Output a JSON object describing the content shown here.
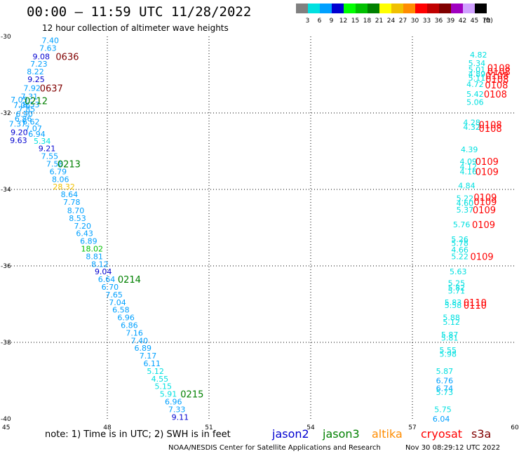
{
  "title": "00:00 – 11:59 UTC 11/28/2022",
  "subtitle": "12 hour collection of altimeter wave heights",
  "scale": {
    "unit": "(ft)",
    "entries": [
      {
        "label": "3",
        "color": "#808080"
      },
      {
        "label": "6",
        "color": "#00e0e0"
      },
      {
        "label": "9",
        "color": "#00a0ff"
      },
      {
        "label": "12",
        "color": "#0000d0"
      },
      {
        "label": "15",
        "color": "#00ff00"
      },
      {
        "label": "18",
        "color": "#00c000"
      },
      {
        "label": "21",
        "color": "#008000"
      },
      {
        "label": "24",
        "color": "#ffff00"
      },
      {
        "label": "27",
        "color": "#f0c000"
      },
      {
        "label": "30",
        "color": "#ff8c00"
      },
      {
        "label": "33",
        "color": "#ff0000"
      },
      {
        "label": "36",
        "color": "#c00000"
      },
      {
        "label": "39",
        "color": "#800000"
      },
      {
        "label": "42",
        "color": "#a000c0"
      },
      {
        "label": "45",
        "color": "#d0a0ff"
      },
      {
        "label": "70",
        "color": "#000000"
      }
    ]
  },
  "map": {
    "lon_range": [
      45,
      60
    ],
    "lat_range": [
      -40,
      -30
    ],
    "lon_ticks": [
      "45",
      "48",
      "51",
      "54",
      "57",
      "60"
    ],
    "lat_ticks": [
      "-30",
      "-32",
      "-34",
      "-36",
      "-38",
      "-40"
    ],
    "gridline_lons": [
      48,
      51,
      54,
      57
    ],
    "gridline_lats": [
      -32,
      -34,
      -36,
      -38
    ]
  },
  "observations": [
    {
      "v": "7.40",
      "lon": 46.32,
      "lat": -30.1,
      "c": "#00a0ff"
    },
    {
      "v": "7.63",
      "lon": 46.25,
      "lat": -30.3,
      "c": "#00a0ff"
    },
    {
      "v": "9.08",
      "lon": 46.05,
      "lat": -30.52,
      "c": "#0000d0"
    },
    {
      "v": "7.23",
      "lon": 45.98,
      "lat": -30.72,
      "c": "#00a0ff"
    },
    {
      "v": "8.22",
      "lon": 45.88,
      "lat": -30.92,
      "c": "#00a0ff"
    },
    {
      "v": "9.25",
      "lon": 45.9,
      "lat": -31.12,
      "c": "#0000d0"
    },
    {
      "v": "7.92",
      "lon": 45.78,
      "lat": -31.35,
      "c": "#00a0ff"
    },
    {
      "v": "7.31",
      "lon": 45.7,
      "lat": -31.57,
      "c": "#00a0ff"
    },
    {
      "v": "7.05",
      "lon": 45.4,
      "lat": -31.65,
      "c": "#00a0ff"
    },
    {
      "v": "7.06",
      "lon": 45.48,
      "lat": -31.8,
      "c": "#00a0ff"
    },
    {
      "v": "8.53",
      "lon": 45.75,
      "lat": -31.78,
      "c": "#00a0ff"
    },
    {
      "v": "7.85",
      "lon": 45.62,
      "lat": -31.9,
      "c": "#00a0ff"
    },
    {
      "v": "6.90",
      "lon": 45.55,
      "lat": -32.03,
      "c": "#00a0ff"
    },
    {
      "v": "6.86",
      "lon": 45.52,
      "lat": -32.15,
      "c": "#00a0ff"
    },
    {
      "v": "6.62",
      "lon": 45.75,
      "lat": -32.23,
      "c": "#00a0ff"
    },
    {
      "v": "7.37",
      "lon": 45.35,
      "lat": -32.28,
      "c": "#00a0ff"
    },
    {
      "v": "7.07",
      "lon": 45.82,
      "lat": -32.4,
      "c": "#00a0ff"
    },
    {
      "v": "9.20",
      "lon": 45.4,
      "lat": -32.5,
      "c": "#0000d0"
    },
    {
      "v": "6.94",
      "lon": 45.92,
      "lat": -32.55,
      "c": "#00a0ff"
    },
    {
      "v": "9.63",
      "lon": 45.38,
      "lat": -32.72,
      "c": "#0000d0"
    },
    {
      "v": "5.34",
      "lon": 46.08,
      "lat": -32.73,
      "c": "#00e0e0"
    },
    {
      "v": "9.21",
      "lon": 46.22,
      "lat": -32.93,
      "c": "#0000d0"
    },
    {
      "v": "7.55",
      "lon": 46.3,
      "lat": -33.13,
      "c": "#00a0ff"
    },
    {
      "v": "7.58",
      "lon": 46.45,
      "lat": -33.33,
      "c": "#00a0ff"
    },
    {
      "v": "6.79",
      "lon": 46.55,
      "lat": -33.53,
      "c": "#00a0ff"
    },
    {
      "v": "8.06",
      "lon": 46.62,
      "lat": -33.73,
      "c": "#00a0ff"
    },
    {
      "v": "28.32",
      "lon": 46.72,
      "lat": -33.93,
      "c": "#f0c000"
    },
    {
      "v": "8.64",
      "lon": 46.88,
      "lat": -34.13,
      "c": "#00a0ff"
    },
    {
      "v": "7.78",
      "lon": 46.95,
      "lat": -34.33,
      "c": "#00a0ff"
    },
    {
      "v": "8.70",
      "lon": 47.07,
      "lat": -34.55,
      "c": "#00a0ff"
    },
    {
      "v": "8.53",
      "lon": 47.12,
      "lat": -34.75,
      "c": "#00a0ff"
    },
    {
      "v": "7.20",
      "lon": 47.27,
      "lat": -34.95,
      "c": "#00a0ff"
    },
    {
      "v": "6.43",
      "lon": 47.33,
      "lat": -35.15,
      "c": "#00a0ff"
    },
    {
      "v": "6.89",
      "lon": 47.45,
      "lat": -35.35,
      "c": "#00a0ff"
    },
    {
      "v": "18.02",
      "lon": 47.55,
      "lat": -35.55,
      "c": "#00c000"
    },
    {
      "v": "8.81",
      "lon": 47.62,
      "lat": -35.75,
      "c": "#00a0ff"
    },
    {
      "v": "8.12",
      "lon": 47.78,
      "lat": -35.95,
      "c": "#00a0ff"
    },
    {
      "v": "9.04",
      "lon": 47.88,
      "lat": -36.15,
      "c": "#0000d0"
    },
    {
      "v": "6.64",
      "lon": 47.98,
      "lat": -36.35,
      "c": "#00a0ff"
    },
    {
      "v": "6.70",
      "lon": 48.08,
      "lat": -36.55,
      "c": "#00a0ff"
    },
    {
      "v": "7.65",
      "lon": 48.2,
      "lat": -36.75,
      "c": "#00a0ff"
    },
    {
      "v": "7.04",
      "lon": 48.3,
      "lat": -36.95,
      "c": "#00a0ff"
    },
    {
      "v": "6.58",
      "lon": 48.4,
      "lat": -37.15,
      "c": "#00a0ff"
    },
    {
      "v": "6.96",
      "lon": 48.55,
      "lat": -37.35,
      "c": "#00a0ff"
    },
    {
      "v": "6.86",
      "lon": 48.65,
      "lat": -37.55,
      "c": "#00a0ff"
    },
    {
      "v": "7.16",
      "lon": 48.8,
      "lat": -37.75,
      "c": "#00a0ff"
    },
    {
      "v": "7.40",
      "lon": 48.95,
      "lat": -37.95,
      "c": "#00a0ff"
    },
    {
      "v": "6.89",
      "lon": 49.05,
      "lat": -38.15,
      "c": "#00a0ff"
    },
    {
      "v": "7.17",
      "lon": 49.2,
      "lat": -38.35,
      "c": "#00a0ff"
    },
    {
      "v": "6.11",
      "lon": 49.32,
      "lat": -38.55,
      "c": "#00a0ff"
    },
    {
      "v": "5.12",
      "lon": 49.42,
      "lat": -38.75,
      "c": "#00e0e0"
    },
    {
      "v": "4.55",
      "lon": 49.55,
      "lat": -38.95,
      "c": "#00e0e0"
    },
    {
      "v": "5.15",
      "lon": 49.65,
      "lat": -39.15,
      "c": "#00e0e0"
    },
    {
      "v": "5.91",
      "lon": 49.8,
      "lat": -39.35,
      "c": "#00e0e0"
    },
    {
      "v": "6.96",
      "lon": 49.95,
      "lat": -39.55,
      "c": "#00a0ff"
    },
    {
      "v": "7.33",
      "lon": 50.05,
      "lat": -39.75,
      "c": "#00a0ff"
    },
    {
      "v": "9.11",
      "lon": 50.15,
      "lat": -39.95,
      "c": "#0000d0"
    },
    {
      "v": "4.82",
      "lon": 58.95,
      "lat": -30.48,
      "c": "#00e0e0"
    },
    {
      "v": "5.34",
      "lon": 58.9,
      "lat": -30.7,
      "c": "#00e0e0"
    },
    {
      "v": "5.01",
      "lon": 58.9,
      "lat": -30.86,
      "c": "#00e0e0"
    },
    {
      "v": "4.89",
      "lon": 58.9,
      "lat": -30.98,
      "c": "#00e0e0"
    },
    {
      "v": "5.11",
      "lon": 58.9,
      "lat": -31.08,
      "c": "#00e0e0"
    },
    {
      "v": "4.72",
      "lon": 58.85,
      "lat": -31.25,
      "c": "#00e0e0"
    },
    {
      "v": "5.42",
      "lon": 58.85,
      "lat": -31.5,
      "c": "#00e0e0"
    },
    {
      "v": "5.06",
      "lon": 58.85,
      "lat": -31.72,
      "c": "#00e0e0"
    },
    {
      "v": "4.28",
      "lon": 58.75,
      "lat": -32.25,
      "c": "#00e0e0"
    },
    {
      "v": "4.32",
      "lon": 58.75,
      "lat": -32.37,
      "c": "#00e0e0"
    },
    {
      "v": "4.39",
      "lon": 58.68,
      "lat": -32.95,
      "c": "#00e0e0"
    },
    {
      "v": "4.09",
      "lon": 58.65,
      "lat": -33.27,
      "c": "#00e0e0"
    },
    {
      "v": "4.12",
      "lon": 58.65,
      "lat": -33.4,
      "c": "#00e0e0"
    },
    {
      "v": "4.16",
      "lon": 58.65,
      "lat": -33.53,
      "c": "#00e0e0"
    },
    {
      "v": "4.84",
      "lon": 58.6,
      "lat": -33.9,
      "c": "#00e0e0"
    },
    {
      "v": "5.22",
      "lon": 58.55,
      "lat": -34.23,
      "c": "#00e0e0"
    },
    {
      "v": "4.60",
      "lon": 58.55,
      "lat": -34.36,
      "c": "#00e0e0"
    },
    {
      "v": "5.37",
      "lon": 58.55,
      "lat": -34.53,
      "c": "#00e0e0"
    },
    {
      "v": "5.76",
      "lon": 58.45,
      "lat": -34.92,
      "c": "#00e0e0"
    },
    {
      "v": "5.26",
      "lon": 58.4,
      "lat": -35.3,
      "c": "#00e0e0"
    },
    {
      "v": "5.78",
      "lon": 58.4,
      "lat": -35.4,
      "c": "#00e0e0"
    },
    {
      "v": "4.66",
      "lon": 58.4,
      "lat": -35.58,
      "c": "#00e0e0"
    },
    {
      "v": "5.22",
      "lon": 58.4,
      "lat": -35.75,
      "c": "#00e0e0"
    },
    {
      "v": "5.63",
      "lon": 58.35,
      "lat": -36.15,
      "c": "#00e0e0"
    },
    {
      "v": "5.25",
      "lon": 58.3,
      "lat": -36.45,
      "c": "#00e0e0"
    },
    {
      "v": "5.82",
      "lon": 58.3,
      "lat": -36.57,
      "c": "#00e0e0"
    },
    {
      "v": "5.71",
      "lon": 58.3,
      "lat": -36.65,
      "c": "#00e0e0"
    },
    {
      "v": "5.83",
      "lon": 58.2,
      "lat": -36.95,
      "c": "#00e0e0"
    },
    {
      "v": "5.58",
      "lon": 58.2,
      "lat": -37.03,
      "c": "#00e0e0"
    },
    {
      "v": "5.88",
      "lon": 58.15,
      "lat": -37.35,
      "c": "#00e0e0"
    },
    {
      "v": "5.12",
      "lon": 58.15,
      "lat": -37.47,
      "c": "#00e0e0"
    },
    {
      "v": "5.87",
      "lon": 58.1,
      "lat": -37.8,
      "c": "#00e0e0"
    },
    {
      "v": "5.81",
      "lon": 58.1,
      "lat": -37.88,
      "c": "#00e0e0"
    },
    {
      "v": "5.55",
      "lon": 58.05,
      "lat": -38.2,
      "c": "#00e0e0"
    },
    {
      "v": "5.98",
      "lon": 58.05,
      "lat": -38.3,
      "c": "#00e0e0"
    },
    {
      "v": "5.87",
      "lon": 57.95,
      "lat": -38.75,
      "c": "#00e0e0"
    },
    {
      "v": "6.76",
      "lon": 57.95,
      "lat": -39.0,
      "c": "#00a0ff"
    },
    {
      "v": "6.74",
      "lon": 57.95,
      "lat": -39.2,
      "c": "#00a0ff"
    },
    {
      "v": "5.73",
      "lon": 57.95,
      "lat": -39.3,
      "c": "#00e0e0"
    },
    {
      "v": "5.75",
      "lon": 57.9,
      "lat": -39.75,
      "c": "#00e0e0"
    },
    {
      "v": "6.04",
      "lon": 57.85,
      "lat": -40.0,
      "c": "#00a0ff"
    }
  ],
  "time_labels": [
    {
      "t": "0636",
      "lon": 46.82,
      "lat": -30.52,
      "c": "#800000"
    },
    {
      "t": "0637",
      "lon": 46.35,
      "lat": -31.35,
      "c": "#800000"
    },
    {
      "t": "0212",
      "lon": 45.9,
      "lat": -31.68,
      "c": "#008000"
    },
    {
      "t": "0213",
      "lon": 46.87,
      "lat": -33.33,
      "c": "#008000"
    },
    {
      "t": "0214",
      "lon": 48.65,
      "lat": -36.35,
      "c": "#008000"
    },
    {
      "t": "0215",
      "lon": 50.5,
      "lat": -39.35,
      "c": "#008000"
    },
    {
      "t": "0108",
      "lon": 59.55,
      "lat": -30.82,
      "c": "#ff0000"
    },
    {
      "t": "0108",
      "lon": 59.55,
      "lat": -30.92,
      "c": "#ff0000"
    },
    {
      "t": "0108",
      "lon": 59.5,
      "lat": -31.02,
      "c": "#ff0000"
    },
    {
      "t": "0108",
      "lon": 59.5,
      "lat": -31.12,
      "c": "#ff0000"
    },
    {
      "t": "0108",
      "lon": 59.48,
      "lat": -31.27,
      "c": "#ff0000"
    },
    {
      "t": "0108",
      "lon": 59.45,
      "lat": -31.5,
      "c": "#ff0000"
    },
    {
      "t": "0108",
      "lon": 59.3,
      "lat": -32.3,
      "c": "#ff0000"
    },
    {
      "t": "0108",
      "lon": 59.3,
      "lat": -32.4,
      "c": "#ff0000"
    },
    {
      "t": "0109",
      "lon": 59.2,
      "lat": -33.27,
      "c": "#ff0000"
    },
    {
      "t": "0109",
      "lon": 59.2,
      "lat": -33.53,
      "c": "#ff0000"
    },
    {
      "t": "0109",
      "lon": 59.15,
      "lat": -34.2,
      "c": "#ff0000"
    },
    {
      "t": "0109",
      "lon": 59.15,
      "lat": -34.32,
      "c": "#ff0000"
    },
    {
      "t": "0109",
      "lon": 59.12,
      "lat": -34.53,
      "c": "#ff0000"
    },
    {
      "t": "0109",
      "lon": 59.1,
      "lat": -34.92,
      "c": "#ff0000"
    },
    {
      "t": "0109",
      "lon": 59.05,
      "lat": -35.75,
      "c": "#ff0000"
    },
    {
      "t": "0110",
      "lon": 58.85,
      "lat": -36.95,
      "c": "#ff0000"
    },
    {
      "t": "0110",
      "lon": 58.85,
      "lat": -37.03,
      "c": "#ff0000"
    }
  ],
  "footer": {
    "note": "note:  1) Time is in UTC;  2) SWH is in feet",
    "satellites": [
      {
        "name": "jason2",
        "color": "#0000d0"
      },
      {
        "name": "jason3",
        "color": "#008000"
      },
      {
        "name": "altika",
        "color": "#ff8c00"
      },
      {
        "name": "cryosat",
        "color": "#ff0000"
      },
      {
        "name": "s3a",
        "color": "#800000"
      }
    ],
    "credit": "NOAA/NESDIS Center for Satellite Applications and Research",
    "issued": "Nov 30 08:29:12 UTC 2022"
  }
}
